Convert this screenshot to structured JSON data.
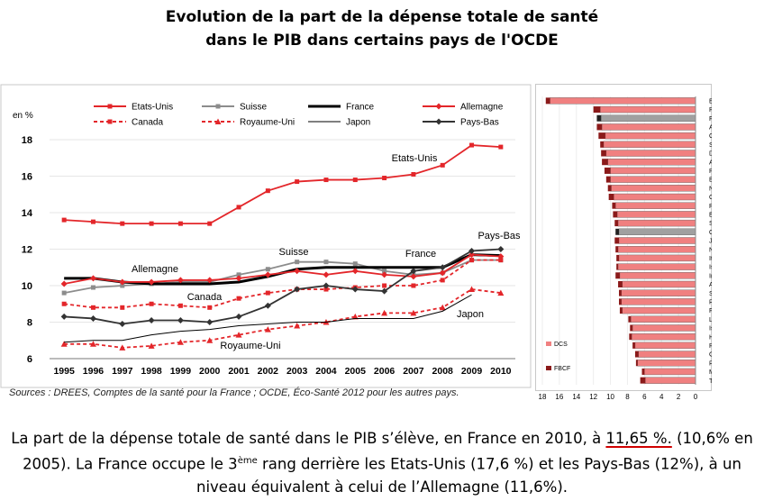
{
  "title": {
    "line1": "Evolution de la part de la dépense totale de santé",
    "line2": "dans le PIB dans certains pays de l'OCDE"
  },
  "source": "Sources : DREES, Comptes de la santé pour la France ; OCDE, Éco-Santé 2012 pour les autres pays.",
  "paragraph": {
    "part1": "La part de la dépense totale de santé dans le PIB s’élève, en France en 2010, à ",
    "highlight": "11,65 %.",
    "part2": " (10,6% en 2005). La France occupe le 3",
    "sup": "ème",
    "part3": " rang derrière les Etats-Unis (17,6 %) et les Pays-Bas (12%), à un niveau équivalent à celui de l’Allemagne (11,6%)."
  },
  "chart_data": [
    {
      "type": "line",
      "ylabel": "en %",
      "ylim": [
        6,
        18
      ],
      "yticks": [
        6,
        8,
        10,
        12,
        14,
        16,
        18
      ],
      "x": [
        1995,
        1996,
        1997,
        1998,
        1999,
        2000,
        2001,
        2002,
        2003,
        2004,
        2005,
        2006,
        2007,
        2008,
        2009,
        2010
      ],
      "legend": [
        "Etats-Unis",
        "Suisse",
        "France",
        "Allemagne",
        "Canada",
        "Royaume-Uni",
        "Japon",
        "Pays-Bas"
      ],
      "annotations": [
        "Etats-Unis",
        "Suisse",
        "France",
        "Allemagne",
        "Canada",
        "Royaume-Uni",
        "Japon",
        "Pays-Bas"
      ],
      "series": [
        {
          "name": "Etats-Unis",
          "color": "#e3262a",
          "dash": "",
          "marker": "square",
          "values": [
            13.6,
            13.5,
            13.4,
            13.4,
            13.4,
            13.4,
            14.3,
            15.2,
            15.7,
            15.8,
            15.8,
            15.9,
            16.1,
            16.6,
            17.7,
            17.6
          ]
        },
        {
          "name": "Suisse",
          "color": "#8c8c8c",
          "dash": "",
          "marker": "square",
          "values": [
            9.6,
            9.9,
            10.0,
            10.1,
            10.2,
            10.2,
            10.6,
            10.9,
            11.3,
            11.3,
            11.2,
            10.8,
            10.6,
            10.7,
            11.4,
            11.4
          ]
        },
        {
          "name": "France",
          "color": "#000000",
          "dash": "",
          "marker": "none",
          "values": [
            10.4,
            10.4,
            10.2,
            10.1,
            10.1,
            10.1,
            10.2,
            10.5,
            10.9,
            11.0,
            11.0,
            11.0,
            11.0,
            11.0,
            11.7,
            11.65
          ]
        },
        {
          "name": "Allemagne",
          "color": "#e3262a",
          "dash": "",
          "marker": "diamond",
          "values": [
            10.1,
            10.4,
            10.2,
            10.2,
            10.3,
            10.3,
            10.4,
            10.6,
            10.8,
            10.6,
            10.8,
            10.6,
            10.5,
            10.7,
            11.7,
            11.6
          ]
        },
        {
          "name": "Canada",
          "color": "#e3262a",
          "dash": "4,3",
          "marker": "square",
          "values": [
            9.0,
            8.8,
            8.8,
            9.0,
            8.9,
            8.8,
            9.3,
            9.6,
            9.8,
            9.8,
            9.9,
            10.0,
            10.0,
            10.3,
            11.4,
            11.4
          ]
        },
        {
          "name": "Royaume-Uni",
          "color": "#e3262a",
          "dash": "4,3",
          "marker": "triangle",
          "values": [
            6.8,
            6.8,
            6.6,
            6.7,
            6.9,
            7.0,
            7.3,
            7.6,
            7.8,
            8.0,
            8.3,
            8.5,
            8.5,
            8.8,
            9.8,
            9.6
          ]
        },
        {
          "name": "Japon",
          "color": "#000000",
          "dash": "",
          "marker": "none",
          "values": [
            6.9,
            7.0,
            7.0,
            7.3,
            7.5,
            7.6,
            7.8,
            7.9,
            8.0,
            8.0,
            8.2,
            8.2,
            8.2,
            8.6,
            9.5,
            null
          ]
        },
        {
          "name": "Pays-Bas",
          "color": "#333333",
          "dash": "",
          "marker": "diamond",
          "values": [
            8.3,
            8.2,
            7.9,
            8.1,
            8.1,
            8.0,
            8.3,
            8.9,
            9.8,
            10.0,
            9.8,
            9.7,
            10.8,
            11.0,
            11.9,
            12.0
          ]
        }
      ]
    },
    {
      "type": "bar",
      "orientation": "horizontal",
      "xlim": [
        0,
        18
      ],
      "xticks": [
        18,
        16,
        14,
        12,
        10,
        8,
        6,
        4,
        2,
        0
      ],
      "legend": [
        "DCS",
        "FBCF"
      ],
      "categories": [
        "Etats-Unis",
        "Pays-Bas",
        "France",
        "Allemagne",
        "Canada",
        "Suisse",
        "Danemark",
        "Autriche",
        "Portugal",
        "Belgique",
        "Nelle-Zélande",
        "Grèce*",
        "Royaume-Uni",
        "Espagne*",
        "Suède",
        "OCDE",
        "Japon*",
        "Norvège",
        "Italie",
        "Islande",
        "Irlande",
        "Australie*",
        "Slovénie",
        "Rép. slovaque",
        "Finlande",
        "Luxembourg*",
        "Israël*",
        "Hongrie",
        "Rép. tchèque",
        "Corée",
        "Pologne",
        "Mexique*",
        "Turquie*"
      ],
      "series": [
        {
          "name": "DCS",
          "color": "#f08080",
          "values": [
            17.1,
            11.2,
            11.1,
            11.0,
            10.6,
            10.8,
            10.5,
            10.3,
            10.0,
            10.0,
            9.9,
            9.6,
            9.4,
            9.2,
            9.1,
            9.0,
            9.0,
            9.1,
            9.0,
            9.1,
            8.9,
            8.6,
            8.7,
            8.7,
            8.6,
            7.6,
            7.4,
            7.5,
            7.1,
            6.7,
            6.8,
            6.0,
            5.9
          ]
        },
        {
          "name": "FBCF",
          "color": "#8b1a1a",
          "values": [
            0.5,
            0.8,
            0.5,
            0.6,
            0.8,
            0.4,
            0.6,
            0.7,
            0.7,
            0.5,
            0.4,
            0.6,
            0.4,
            0.5,
            0.4,
            0.4,
            0.5,
            0.3,
            0.3,
            0.2,
            0.5,
            0.5,
            0.3,
            0.3,
            0.3,
            0.3,
            0.3,
            0.3,
            0.3,
            0.4,
            0.2,
            0.3,
            0.6
          ]
        }
      ]
    }
  ]
}
